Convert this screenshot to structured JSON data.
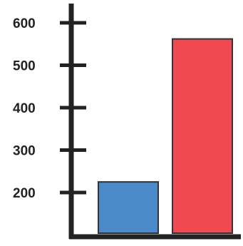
{
  "chart_data": {
    "type": "bar",
    "categories": [
      "",
      ""
    ],
    "values": [
      225,
      562
    ],
    "colors": [
      "#4a8ac9",
      "#f04a50"
    ],
    "title": "",
    "xlabel": "",
    "ylabel": "",
    "yticks": [
      200,
      300,
      400,
      500,
      600
    ],
    "ytick_labels": [
      "200",
      "300",
      "400",
      "500",
      "600"
    ],
    "grid": false,
    "legend": "none"
  },
  "axis_color": "#222222",
  "bar_outline_color": "#333333"
}
